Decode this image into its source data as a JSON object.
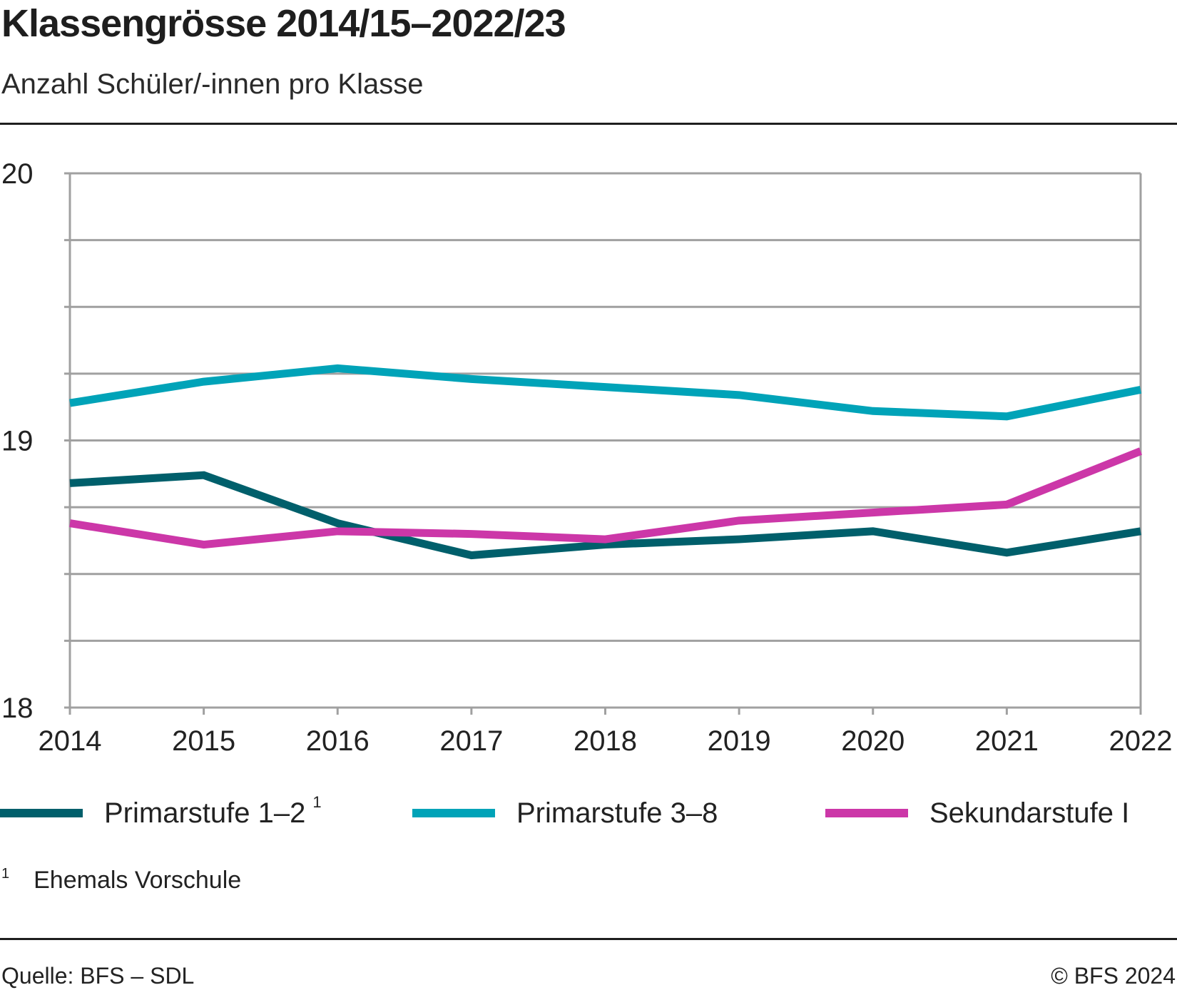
{
  "header": {
    "title": "Klassengrösse 2014/15–2022/23",
    "subtitle": "Anzahl Schüler/-innen pro Klasse"
  },
  "legend": {
    "items": [
      {
        "label": "Primarstufe 1–2",
        "sup": "1",
        "color": "#005f6b"
      },
      {
        "label": "Primarstufe 3–8",
        "sup": "",
        "color": "#00a3b8"
      },
      {
        "label": "Sekundarstufe I",
        "sup": "",
        "color": "#cc37a8"
      }
    ]
  },
  "footnote": {
    "mark": "1",
    "text": "Ehemals Vorschule"
  },
  "footer": {
    "source": "Quelle: BFS – SDL",
    "copyright": "© BFS 2024"
  },
  "chart_data": {
    "type": "line",
    "title": "Klassengrösse 2014/15–2022/23",
    "subtitle": "Anzahl Schüler/-innen pro Klasse",
    "xlabel": "",
    "ylabel": "",
    "x": [
      "2014",
      "2015",
      "2016",
      "2017",
      "2018",
      "2019",
      "2020",
      "2021",
      "2022"
    ],
    "ylim": [
      18,
      20
    ],
    "yticks": [
      18,
      19,
      20
    ],
    "ygrid_step": 0.25,
    "grid": true,
    "legend_position": "bottom",
    "series": [
      {
        "name": "Primarstufe 1–2",
        "footnote": "1",
        "color": "#005f6b",
        "values": [
          18.84,
          18.87,
          18.69,
          18.57,
          18.61,
          18.63,
          18.66,
          18.58,
          18.66
        ]
      },
      {
        "name": "Primarstufe 3–8",
        "footnote": "",
        "color": "#00a3b8",
        "values": [
          19.14,
          19.22,
          19.27,
          19.23,
          19.2,
          19.17,
          19.11,
          19.09,
          19.19
        ]
      },
      {
        "name": "Sekundarstufe I",
        "footnote": "",
        "color": "#cc37a8",
        "values": [
          18.69,
          18.61,
          18.66,
          18.65,
          18.63,
          18.7,
          18.73,
          18.76,
          18.96
        ]
      }
    ]
  }
}
